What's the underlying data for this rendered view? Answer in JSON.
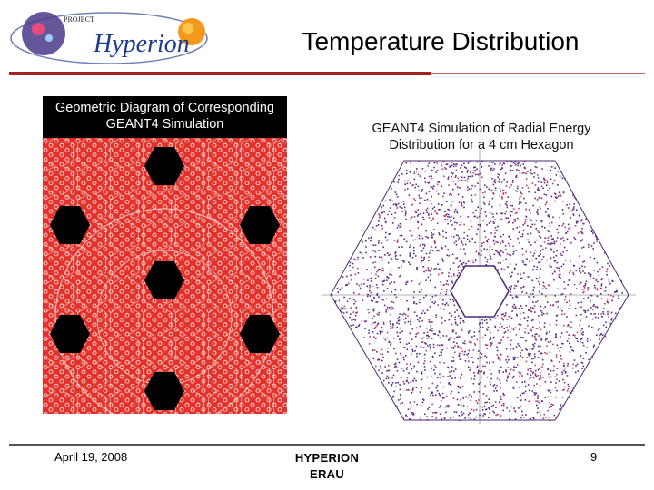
{
  "logo": {
    "small_text": "PROJECT",
    "brand_text": "Hyperion"
  },
  "slide": {
    "title": "Temperature Distribution"
  },
  "left_figure": {
    "title_line1": "Geometric Diagram of Corresponding",
    "title_line2": "GEANT4 Simulation"
  },
  "right_figure": {
    "title_line1": "GEANT4 Simulation of Radial Energy",
    "title_line2": "Distribution for a 4 cm Hexagon"
  },
  "footer": {
    "date": "April 19, 2008",
    "center_line1": "HYPERION",
    "center_line2": "ERAU",
    "page_number": "9"
  },
  "colors": {
    "accent_rule": "#a52222",
    "diagram_background": "#e3322c",
    "scatter_color": "#5a2d8a"
  }
}
